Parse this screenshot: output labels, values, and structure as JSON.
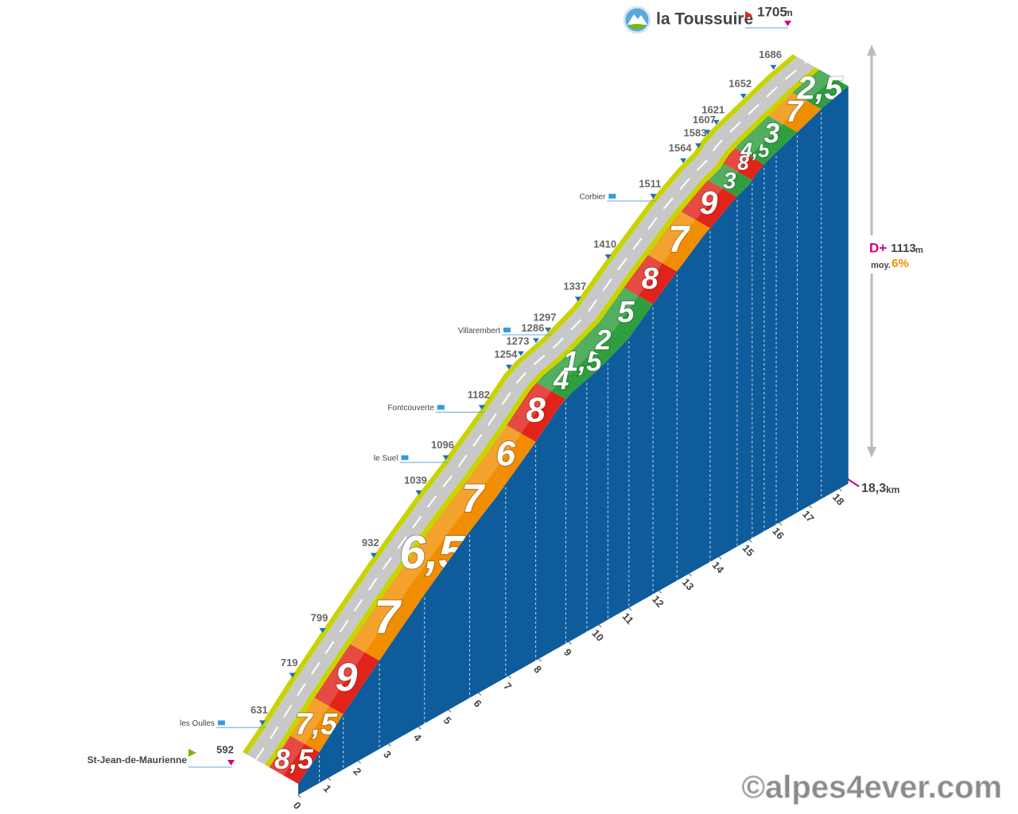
{
  "chart_data": {
    "type": "profile",
    "title": "la Toussuire",
    "start": "St-Jean-de-Maurienne",
    "unit": "m",
    "points": {
      "km": [
        0,
        0.5,
        1.5,
        2.5,
        4.2,
        5.7,
        6.6,
        7.8,
        8.7,
        9.1,
        9.6,
        10,
        11,
        12,
        13.5,
        14.5,
        15,
        15.3,
        15.6,
        16.5,
        17.5,
        18.3
      ],
      "altitude": [
        592,
        631,
        719,
        799,
        932,
        1039,
        1096,
        1182,
        1254,
        1273,
        1286,
        1297,
        1337,
        1410,
        1511,
        1564,
        1583,
        1607,
        1621,
        1652,
        1686,
        1705
      ],
      "place_names": [
        null,
        "les Oulles",
        null,
        null,
        null,
        null,
        "le Suel",
        "Fontcouverte",
        null,
        null,
        null,
        "Villarembert",
        null,
        null,
        "Corbier",
        null,
        null,
        null,
        null,
        null,
        null,
        null
      ]
    },
    "segments": {
      "x": [
        0,
        0.7,
        1.5,
        2.7,
        4.2,
        5.7,
        6.9,
        7.9,
        8.9,
        9.6,
        10.3,
        11,
        11.8,
        12.6,
        13.7,
        14.6,
        15.1,
        15.5,
        15.9,
        16.6,
        17.4
      ],
      "values": [
        8.5,
        7.5,
        9,
        7,
        6.5,
        7,
        6,
        8,
        4,
        1.5,
        2,
        5,
        8,
        7,
        9,
        3,
        8,
        4.5,
        3,
        7,
        2.5
      ],
      "value_labels": [
        "8,5",
        "7,5",
        "9",
        "7",
        "6,5",
        "7",
        "6",
        "8",
        "4",
        "1,5",
        "2",
        "5",
        "8",
        "7",
        "9",
        "3",
        "8",
        "4,5",
        "3",
        "7",
        "2,5"
      ],
      "colors": [
        "#e2231a",
        "#f18e00",
        "#e2231a",
        "#f18e00",
        "#f18e00",
        "#f18e00",
        "#f18e00",
        "#e2231a",
        "#2e9e3e",
        "#2e9e3e",
        "#2e9e3e",
        "#2e9e3e",
        "#e2231a",
        "#f18e00",
        "#e2231a",
        "#2e9e3e",
        "#e2231a",
        "#2e9e3e",
        "#2e9e3e",
        "#f18e00",
        "#2e9e3e"
      ]
    },
    "xlim": [
      0,
      18.3
    ],
    "xticks": [
      0,
      1,
      2,
      3,
      4,
      5,
      6,
      7,
      8,
      9,
      10,
      11,
      12,
      13,
      14,
      15,
      16,
      17,
      18
    ],
    "ylim": [
      560,
      1705
    ],
    "distance": {
      "value": 18.3,
      "label": "18,3"
    },
    "distance_unit": "km",
    "gain_label": "D+",
    "gain": 1113,
    "gain_unit": "m",
    "average_label": "moy.",
    "average": "6%",
    "wall_color": "#0f5c9c",
    "road_color": "#c8c8c8",
    "edge_color": "#c8d400",
    "copyright": "©alpes4ever.com"
  }
}
